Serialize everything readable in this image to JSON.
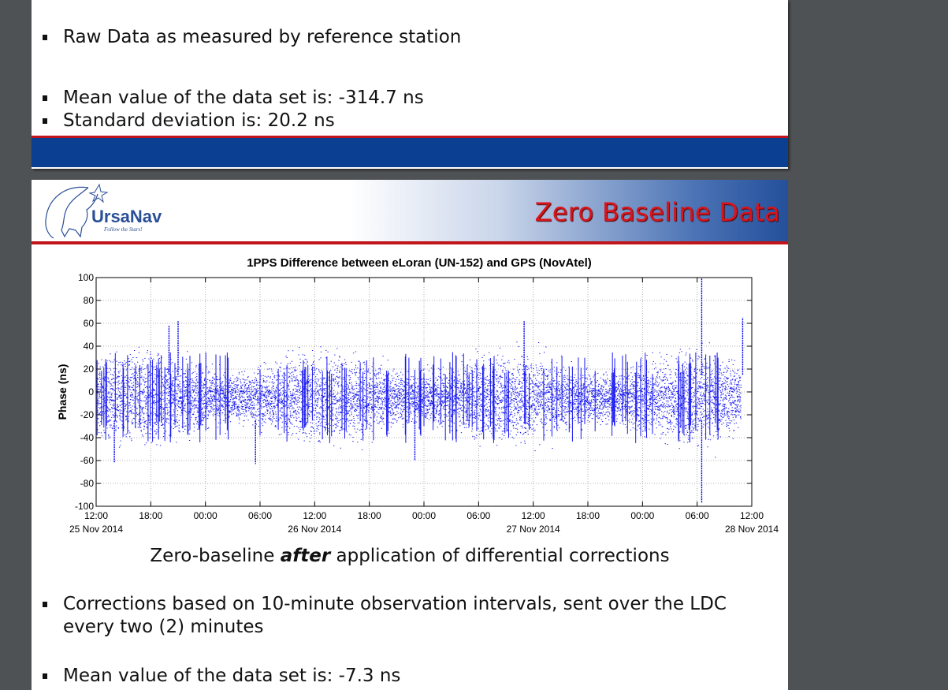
{
  "prev_slide": {
    "bullets": [
      "Raw Data as measured by reference station",
      "Mean value of the data set is: -314.7 ns",
      "Standard deviation is: 20.2 ns"
    ]
  },
  "slide": {
    "logo_text": "UrsaNav",
    "logo_tagline": "Follow the Stars!",
    "title": "Zero Baseline Data",
    "caption_before": "Zero-baseline ",
    "caption_emph": "after",
    "caption_after": " application of differential corrections",
    "bullets": [
      "Corrections based on 10-minute observation intervals, sent over the LDC every two (2) minutes",
      "Mean value of the data set is: -7.3 ns"
    ]
  },
  "colors": {
    "series": "#0000ee",
    "accent_red": "#c0161b",
    "footer_blue": "#0b3f91",
    "title_red": "#d9141b"
  },
  "chart_data": {
    "type": "scatter",
    "title": "1PPS Difference between eLoran (UN-152) and GPS (NovAtel)",
    "ylabel": "Phase (ns)",
    "xlabel": "",
    "ylim": [
      -100,
      100
    ],
    "yticks": [
      "100",
      "80",
      "60",
      "40",
      "20",
      "0",
      "-20",
      "-40",
      "-60",
      "-80",
      "-100"
    ],
    "xticks": [
      "12:00",
      "18:00",
      "00:00",
      "06:00",
      "12:00",
      "18:00",
      "00:00",
      "06:00",
      "12:00",
      "18:00",
      "00:00",
      "06:00",
      "12:00"
    ],
    "date_labels": [
      {
        "tick": 0,
        "label": "25 Nov 2014"
      },
      {
        "tick": 4,
        "label": "26 Nov 2014"
      },
      {
        "tick": 8,
        "label": "27 Nov 2014"
      },
      {
        "tick": 12,
        "label": "28 Nov 2014"
      }
    ],
    "grid": true,
    "series_color": "#0000ee",
    "typical_band": [
      -25,
      15
    ],
    "outliers": [
      {
        "x": "25 Nov 2014 14:00",
        "y": -62
      },
      {
        "x": "25 Nov 2014 20:00",
        "y": 58
      },
      {
        "x": "25 Nov 2014 21:00",
        "y": 62
      },
      {
        "x": "26 Nov 2014 05:30",
        "y": -63
      },
      {
        "x": "26 Nov 2014 23:00",
        "y": -60
      },
      {
        "x": "27 Nov 2014 11:00",
        "y": 62
      },
      {
        "x": "28 Nov 2014 06:30",
        "y": 100
      },
      {
        "x": "28 Nov 2014 06:30",
        "y": -97
      },
      {
        "x": "28 Nov 2014 11:00",
        "y": 65
      }
    ]
  }
}
